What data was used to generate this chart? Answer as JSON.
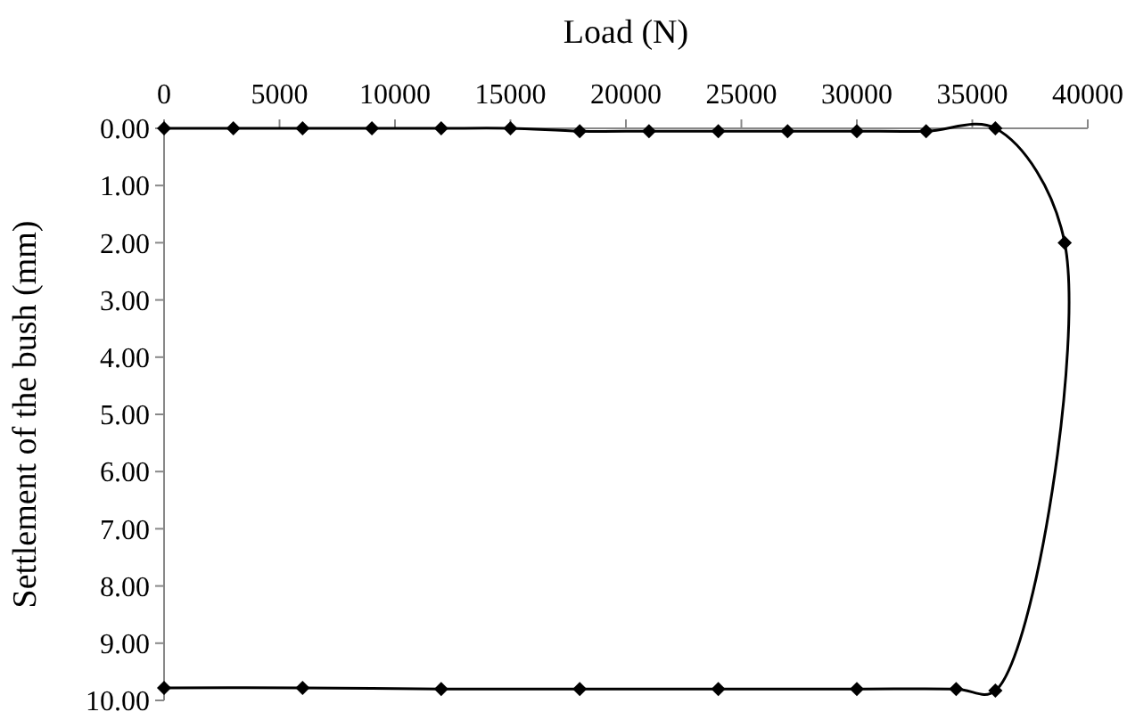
{
  "chart_data": {
    "type": "line",
    "xlabel": "Load (N)",
    "ylabel": "Settlement of the bush (mm)",
    "xlim": [
      0,
      40000
    ],
    "xticks": [
      0,
      5000,
      10000,
      15000,
      20000,
      25000,
      30000,
      35000,
      40000
    ],
    "ylim": [
      10,
      0
    ],
    "yticks": [
      {
        "value": 0,
        "label": "0.00"
      },
      {
        "value": 1,
        "label": "1.00"
      },
      {
        "value": 2,
        "label": "2.00"
      },
      {
        "value": 3,
        "label": "3.00"
      },
      {
        "value": 4,
        "label": "4.00"
      },
      {
        "value": 5,
        "label": "5.00"
      },
      {
        "value": 6,
        "label": "6.00"
      },
      {
        "value": 7,
        "label": "7.00"
      },
      {
        "value": 8,
        "label": "8.00"
      },
      {
        "value": 9,
        "label": "9.00"
      },
      {
        "value": 10,
        "label": "10.00"
      }
    ],
    "marker": "diamond",
    "line_style": "solid",
    "grid": false,
    "series": [
      {
        "color": "#000000",
        "x": [
          0,
          3000,
          6000,
          9000,
          12000,
          15000,
          18000,
          21000,
          24000,
          27000,
          30000,
          33000,
          36000,
          39000,
          36000,
          34300,
          30000,
          24000,
          18000,
          12000,
          6000,
          0
        ],
        "values": [
          0,
          0,
          0,
          0,
          0,
          0,
          0.05,
          0.05,
          0.05,
          0.05,
          0.05,
          0.05,
          0,
          2.0,
          9.83,
          9.8,
          9.8,
          9.8,
          9.8,
          9.8,
          9.78,
          9.78
        ]
      }
    ]
  }
}
